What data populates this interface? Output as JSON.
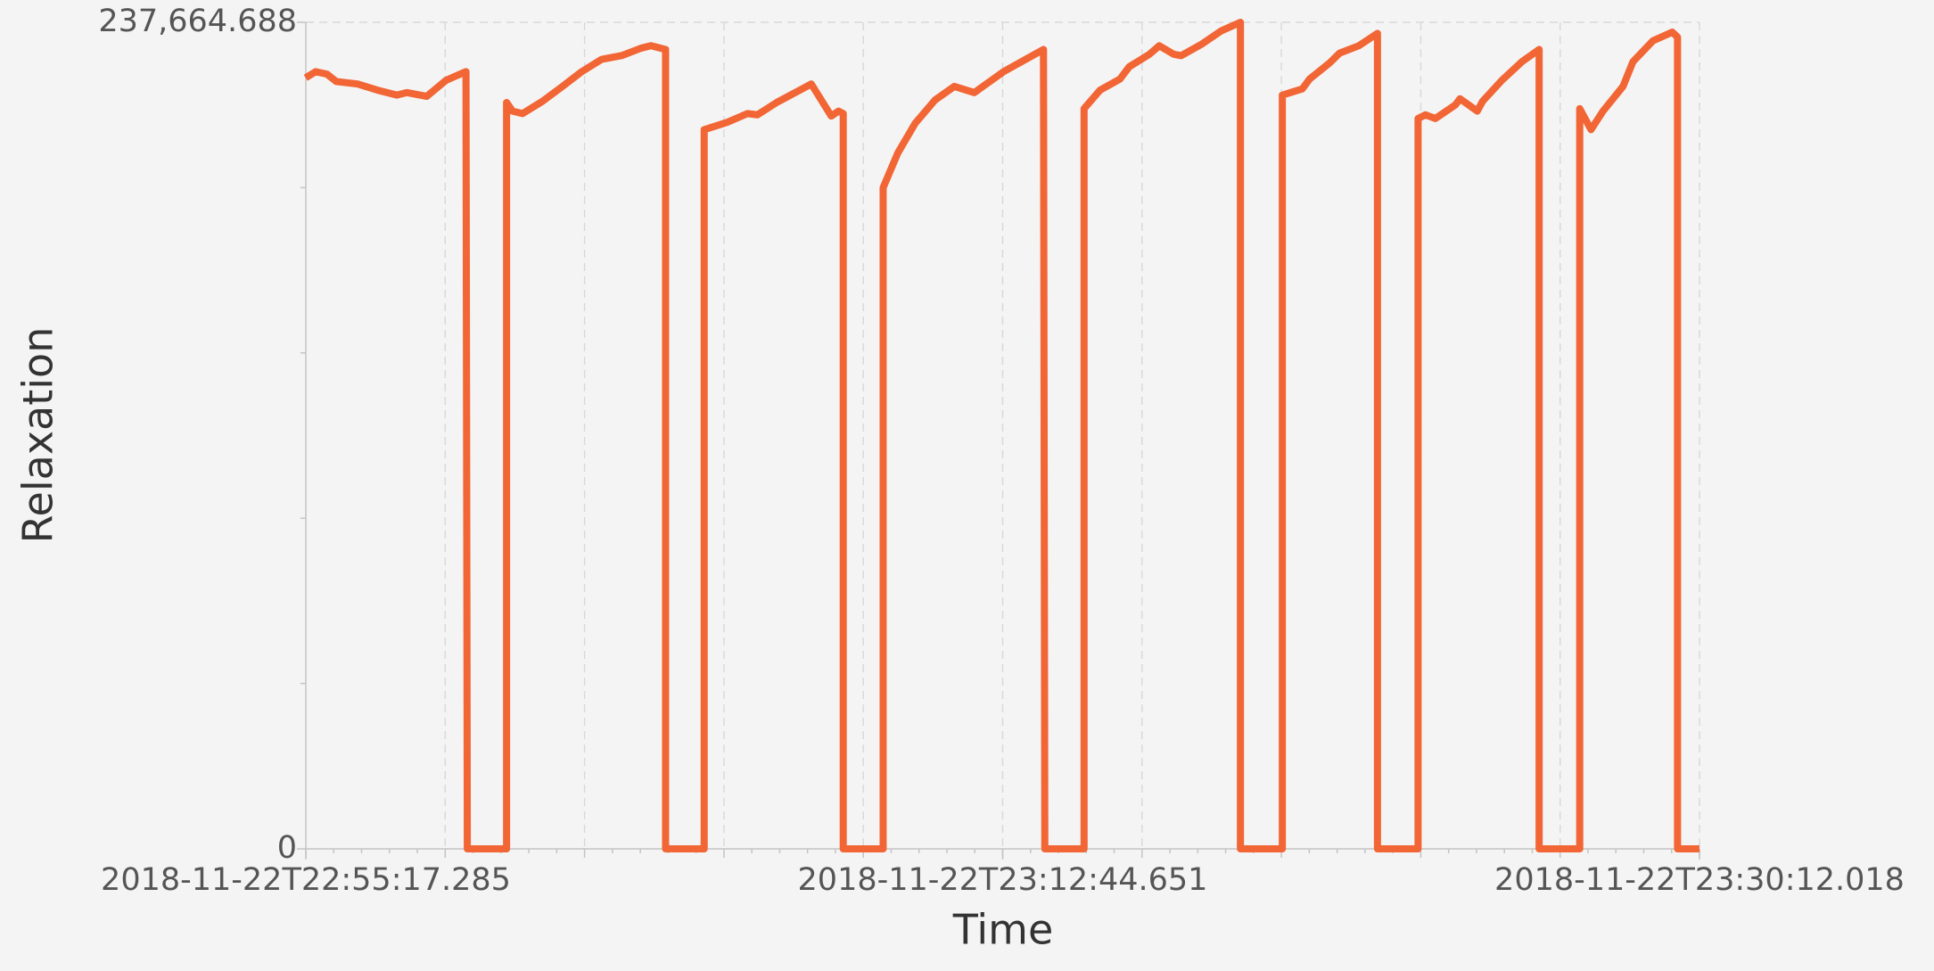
{
  "chart_data": {
    "type": "line",
    "xlabel": "Time",
    "ylabel": "Relaxation",
    "color": "#f26535",
    "xlim": [
      "2018-11-22T22:55:17.285",
      "2018-11-22T23:30:12.018"
    ],
    "xticks": [
      "2018-11-22T22:55:17.285",
      "2018-11-22T23:12:44.651",
      "2018-11-22T23:30:12.018"
    ],
    "ylim": [
      0,
      237664.688
    ],
    "yticks": [
      0,
      {
        "value": 237664.688,
        "label": "237,664.688"
      }
    ],
    "grid": true,
    "x": [
      "2018-11-22T22:55:17",
      "2018-11-22T22:55:32",
      "2018-11-22T22:55:49",
      "2018-11-22T22:56:03",
      "2018-11-22T22:56:35",
      "2018-11-22T22:57:05",
      "2018-11-22T22:57:34",
      "2018-11-22T22:57:49",
      "2018-11-22T22:58:19",
      "2018-11-22T22:58:48",
      "2018-11-22T22:59:18",
      "2018-11-22T22:59:20",
      "2018-11-22T23:00:19",
      "2018-11-22T23:00:19",
      "2018-11-22T23:00:28",
      "2018-11-22T23:00:43",
      "2018-11-22T23:01:13",
      "2018-11-22T23:01:43",
      "2018-11-22T23:02:12",
      "2018-11-22T23:02:42",
      "2018-11-22T23:03:12",
      "2018-11-22T23:03:41",
      "2018-11-22T23:03:56",
      "2018-11-22T23:04:18",
      "2018-11-22T23:04:18",
      "2018-11-22T23:05:16",
      "2018-11-22T23:05:16",
      "2018-11-22T23:05:51",
      "2018-11-22T23:06:21",
      "2018-11-22T23:06:36",
      "2018-11-22T23:07:05",
      "2018-11-22T23:07:57",
      "2018-11-22T23:08:27",
      "2018-11-22T23:08:38",
      "2018-11-22T23:08:45",
      "2018-11-22T23:08:45",
      "2018-11-22T23:09:45",
      "2018-11-22T23:09:45",
      "2018-11-22T23:10:07",
      "2018-11-22T23:10:33",
      "2018-11-22T23:11:03",
      "2018-11-22T23:11:32",
      "2018-11-22T23:12:02",
      "2018-11-22T23:12:46",
      "2018-11-22T23:13:46",
      "2018-11-22T23:13:48",
      "2018-11-22T23:14:47",
      "2018-11-22T23:14:47",
      "2018-11-22T23:15:11",
      "2018-11-22T23:15:41",
      "2018-11-22T23:15:55",
      "2018-11-22T23:16:25",
      "2018-11-22T23:16:40",
      "2018-11-22T23:17:02",
      "2018-11-22T23:17:13",
      "2018-11-22T23:17:43",
      "2018-11-22T23:18:13",
      "2018-11-22T23:18:42",
      "2018-11-22T23:18:42",
      "2018-11-22T23:19:45",
      "2018-11-22T23:19:45",
      "2018-11-22T23:20:15",
      "2018-11-22T23:20:26",
      "2018-11-22T23:20:56",
      "2018-11-22T23:21:11",
      "2018-11-22T23:21:40",
      "2018-11-22T23:22:08",
      "2018-11-22T23:22:08",
      "2018-11-22T23:23:09",
      "2018-11-22T23:23:09",
      "2018-11-22T23:23:20",
      "2018-11-22T23:23:35",
      "2018-11-22T23:24:05",
      "2018-11-22T23:24:12",
      "2018-11-22T23:24:38",
      "2018-11-22T23:24:46",
      "2018-11-22T23:25:15",
      "2018-11-22T23:25:45",
      "2018-11-22T23:26:11",
      "2018-11-22T23:26:11",
      "2018-11-22T23:27:12",
      "2018-11-22T23:27:12",
      "2018-11-22T23:27:29",
      "2018-11-22T23:27:47",
      "2018-11-22T23:28:17",
      "2018-11-22T23:28:32",
      "2018-11-22T23:29:02",
      "2018-11-22T23:29:31",
      "2018-11-22T23:29:39",
      "2018-11-22T23:29:39",
      "2018-11-22T23:30:12"
    ],
    "values": [
      221700,
      223474,
      222764,
      220636,
      219926,
      218153,
      216734,
      217443,
      216379,
      220991,
      223474,
      0,
      0,
      214606,
      212123,
      211413,
      214960,
      219217,
      223474,
      227021,
      228085,
      230213,
      230923,
      229859,
      0,
      0,
      206802,
      208930,
      211413,
      211058,
      214606,
      219926,
      210704,
      212123,
      211413,
      0,
      0,
      190130,
      200062,
      208575,
      215315,
      219217,
      217443,
      223474,
      229859,
      0,
      0,
      212832,
      218153,
      221345,
      224892,
      228440,
      230923,
      228440,
      228085,
      231277,
      235179,
      237664,
      0,
      0,
      216734,
      218507,
      221345,
      225957,
      228794,
      230923,
      234470,
      0,
      0,
      209994,
      211058,
      209994,
      213896,
      215670,
      212123,
      214960,
      220991,
      226311,
      229859,
      0,
      0,
      212832,
      206802,
      212123,
      219217,
      226311,
      232342,
      234825,
      233406,
      0,
      0
    ]
  }
}
